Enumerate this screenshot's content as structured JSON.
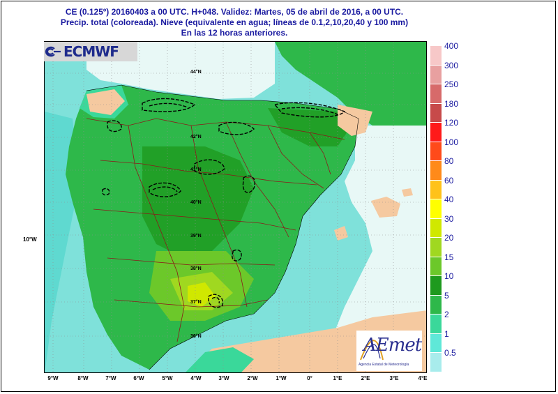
{
  "header": {
    "line1": "CE (0.125º) 20160403 a 00 UTC.  H+048. Validez: Martes, 05 de abril de 2016,  a  00 UTC.",
    "line2": "Precip. total (coloreada). Nieve (equivalente en agua; líneas de 0.1,2,10,20,40 y 100 mm)",
    "line3": "En las 12 horas anteriores."
  },
  "logos": {
    "ecmwf": "ECMWF",
    "aemet": "AEmet",
    "aemet_sub": "Agencia Estatal de Meteorología"
  },
  "axes": {
    "lon_ticks": [
      "9°W",
      "8°W",
      "7°W",
      "6°W",
      "5°W",
      "4°W",
      "3°W",
      "2°W",
      "1°W",
      "0°",
      "1°E",
      "2°E",
      "3°E",
      "4°E"
    ],
    "left_label": "10°W",
    "lat_labels": [
      "44°N",
      "42°N",
      "41°N",
      "40°N",
      "39°N",
      "38°N",
      "37°N",
      "36°N"
    ]
  },
  "legend": {
    "levels": [
      {
        "label": "400",
        "color": "#f7c8c8"
      },
      {
        "label": "300",
        "color": "#e8a0a0"
      },
      {
        "label": "250",
        "color": "#d76a6a"
      },
      {
        "label": "180",
        "color": "#c74a4a"
      },
      {
        "label": "120",
        "color": "#ff1a1a"
      },
      {
        "label": "100",
        "color": "#ff4a1a"
      },
      {
        "label": "80",
        "color": "#ff8a1a"
      },
      {
        "label": "60",
        "color": "#ffc21a"
      },
      {
        "label": "40",
        "color": "#ffff00"
      },
      {
        "label": "30",
        "color": "#d0e800"
      },
      {
        "label": "20",
        "color": "#a0d820"
      },
      {
        "label": "15",
        "color": "#6cc82a"
      },
      {
        "label": "10",
        "color": "#1e9a1e"
      },
      {
        "label": "5",
        "color": "#2eb84a"
      },
      {
        "label": "2",
        "color": "#3ad89a"
      },
      {
        "label": "1",
        "color": "#5fe8d8"
      },
      {
        "label": "0.5",
        "color": "#a8ecec"
      }
    ]
  },
  "colors": {
    "land_dry": "#f5c9a0",
    "sea": "#ffffff",
    "border": "#8b1a1a",
    "grid": "#909090",
    "title": "#1a1aa0"
  }
}
